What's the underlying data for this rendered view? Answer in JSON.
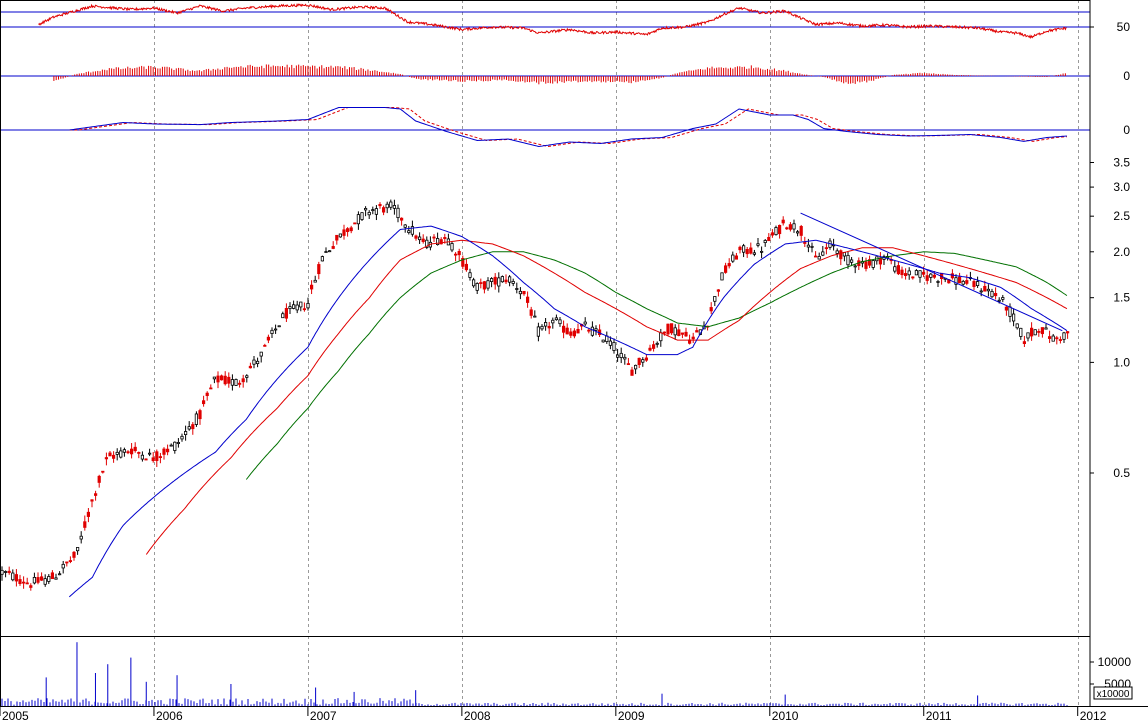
{
  "colors": {
    "up": "#000000",
    "down": "#e00000",
    "ma_short": "#0000cc",
    "ma_mid": "#e00000",
    "ma_long": "#007000",
    "reference_line": "#0000cc",
    "grid": "#9a9a9a",
    "volume": "#0000cc"
  },
  "chart_data": [
    {
      "id": "price",
      "type": "candlestick",
      "scale": "log",
      "ylim": [
        0.18,
        3.6
      ],
      "yticks": [
        "3.5",
        "3.0",
        "2.5",
        "2.0",
        "1.5",
        "1.0",
        "0.5"
      ],
      "ytick_values": [
        3.5,
        3.0,
        2.5,
        2.0,
        1.5,
        1.0,
        0.5
      ],
      "x_range": [
        2005.0,
        2011.95
      ],
      "x_tick_labels": [
        "2005",
        "2006",
        "2007",
        "2008",
        "2009",
        "2010",
        "2011",
        "2012"
      ],
      "x_tick_values": [
        2005,
        2006,
        2007,
        2008,
        2009,
        2010,
        2011,
        2012
      ],
      "close_anchors": [
        [
          2005.0,
          0.27
        ],
        [
          2005.2,
          0.25
        ],
        [
          2005.35,
          0.26
        ],
        [
          2005.5,
          0.3
        ],
        [
          2005.6,
          0.42
        ],
        [
          2005.7,
          0.55
        ],
        [
          2005.85,
          0.58
        ],
        [
          2006.0,
          0.55
        ],
        [
          2006.15,
          0.6
        ],
        [
          2006.3,
          0.72
        ],
        [
          2006.4,
          0.9
        ],
        [
          2006.55,
          0.88
        ],
        [
          2006.7,
          1.05
        ],
        [
          2006.85,
          1.35
        ],
        [
          2007.0,
          1.45
        ],
        [
          2007.1,
          1.95
        ],
        [
          2007.25,
          2.3
        ],
        [
          2007.4,
          2.6
        ],
        [
          2007.55,
          2.65
        ],
        [
          2007.65,
          2.35
        ],
        [
          2007.75,
          2.1
        ],
        [
          2007.9,
          2.2
        ],
        [
          2008.0,
          1.9
        ],
        [
          2008.1,
          1.6
        ],
        [
          2008.3,
          1.7
        ],
        [
          2008.4,
          1.55
        ],
        [
          2008.5,
          1.2
        ],
        [
          2008.6,
          1.3
        ],
        [
          2008.7,
          1.2
        ],
        [
          2008.8,
          1.25
        ],
        [
          2008.95,
          1.15
        ],
        [
          2009.1,
          0.95
        ],
        [
          2009.2,
          1.05
        ],
        [
          2009.35,
          1.25
        ],
        [
          2009.5,
          1.15
        ],
        [
          2009.6,
          1.3
        ],
        [
          2009.7,
          1.75
        ],
        [
          2009.8,
          2.0
        ],
        [
          2009.95,
          2.05
        ],
        [
          2010.1,
          2.4
        ],
        [
          2010.2,
          2.3
        ],
        [
          2010.3,
          1.9
        ],
        [
          2010.4,
          2.1
        ],
        [
          2010.5,
          1.9
        ],
        [
          2010.65,
          1.85
        ],
        [
          2010.75,
          1.95
        ],
        [
          2010.85,
          1.75
        ],
        [
          2011.0,
          1.72
        ],
        [
          2011.15,
          1.7
        ],
        [
          2011.3,
          1.65
        ],
        [
          2011.45,
          1.55
        ],
        [
          2011.55,
          1.4
        ],
        [
          2011.65,
          1.15
        ],
        [
          2011.75,
          1.25
        ],
        [
          2011.85,
          1.15
        ],
        [
          2011.93,
          1.2
        ]
      ],
      "ma_short_anchors": [
        [
          2005.45,
          0.23
        ],
        [
          2005.6,
          0.26
        ],
        [
          2005.8,
          0.36
        ],
        [
          2006.0,
          0.43
        ],
        [
          2006.2,
          0.5
        ],
        [
          2006.4,
          0.57
        ],
        [
          2006.6,
          0.7
        ],
        [
          2006.8,
          0.9
        ],
        [
          2007.0,
          1.1
        ],
        [
          2007.2,
          1.5
        ],
        [
          2007.4,
          1.9
        ],
        [
          2007.6,
          2.3
        ],
        [
          2007.8,
          2.35
        ],
        [
          2008.0,
          2.2
        ],
        [
          2008.2,
          1.95
        ],
        [
          2008.4,
          1.65
        ],
        [
          2008.6,
          1.4
        ],
        [
          2008.8,
          1.25
        ],
        [
          2009.0,
          1.15
        ],
        [
          2009.2,
          1.05
        ],
        [
          2009.4,
          1.05
        ],
        [
          2009.5,
          1.1
        ],
        [
          2009.7,
          1.5
        ],
        [
          2009.9,
          1.85
        ],
        [
          2010.1,
          2.1
        ],
        [
          2010.3,
          2.15
        ],
        [
          2010.5,
          2.05
        ],
        [
          2010.7,
          1.95
        ],
        [
          2010.9,
          1.85
        ],
        [
          2011.1,
          1.75
        ],
        [
          2011.3,
          1.7
        ],
        [
          2011.5,
          1.6
        ],
        [
          2011.7,
          1.4
        ],
        [
          2011.93,
          1.22
        ]
      ],
      "ma_mid_anchors": [
        [
          2005.95,
          0.3
        ],
        [
          2006.2,
          0.4
        ],
        [
          2006.5,
          0.55
        ],
        [
          2006.8,
          0.75
        ],
        [
          2007.0,
          0.92
        ],
        [
          2007.2,
          1.2
        ],
        [
          2007.4,
          1.5
        ],
        [
          2007.6,
          1.9
        ],
        [
          2007.8,
          2.1
        ],
        [
          2008.0,
          2.15
        ],
        [
          2008.2,
          2.1
        ],
        [
          2008.4,
          1.95
        ],
        [
          2008.6,
          1.75
        ],
        [
          2008.8,
          1.55
        ],
        [
          2009.0,
          1.4
        ],
        [
          2009.2,
          1.25
        ],
        [
          2009.4,
          1.15
        ],
        [
          2009.6,
          1.15
        ],
        [
          2009.8,
          1.3
        ],
        [
          2010.0,
          1.55
        ],
        [
          2010.2,
          1.8
        ],
        [
          2010.4,
          1.95
        ],
        [
          2010.6,
          2.05
        ],
        [
          2010.8,
          2.05
        ],
        [
          2011.0,
          1.95
        ],
        [
          2011.2,
          1.85
        ],
        [
          2011.4,
          1.75
        ],
        [
          2011.6,
          1.65
        ],
        [
          2011.8,
          1.5
        ],
        [
          2011.93,
          1.4
        ]
      ],
      "ma_long_anchors": [
        [
          2006.6,
          0.48
        ],
        [
          2006.8,
          0.6
        ],
        [
          2007.0,
          0.75
        ],
        [
          2007.2,
          0.95
        ],
        [
          2007.4,
          1.2
        ],
        [
          2007.6,
          1.5
        ],
        [
          2007.8,
          1.75
        ],
        [
          2008.0,
          1.9
        ],
        [
          2008.2,
          2.0
        ],
        [
          2008.4,
          2.0
        ],
        [
          2008.6,
          1.9
        ],
        [
          2008.8,
          1.75
        ],
        [
          2009.0,
          1.55
        ],
        [
          2009.2,
          1.4
        ],
        [
          2009.4,
          1.28
        ],
        [
          2009.6,
          1.25
        ],
        [
          2009.8,
          1.32
        ],
        [
          2010.0,
          1.45
        ],
        [
          2010.2,
          1.6
        ],
        [
          2010.4,
          1.75
        ],
        [
          2010.6,
          1.88
        ],
        [
          2010.8,
          1.95
        ],
        [
          2011.0,
          2.0
        ],
        [
          2011.2,
          1.98
        ],
        [
          2011.4,
          1.9
        ],
        [
          2011.6,
          1.82
        ],
        [
          2011.8,
          1.65
        ],
        [
          2011.93,
          1.52
        ]
      ],
      "trendline": [
        [
          2010.2,
          2.55
        ],
        [
          2011.9,
          1.22
        ]
      ]
    },
    {
      "id": "indicator_1",
      "type": "line",
      "ylim": [
        0,
        100
      ],
      "yticks": [
        "50"
      ],
      "ytick_values": [
        50
      ],
      "reference_lines": [
        80,
        50
      ],
      "anchors": [
        [
          2005.25,
          55
        ],
        [
          2005.35,
          70
        ],
        [
          2005.6,
          92
        ],
        [
          2005.85,
          85
        ],
        [
          2006.0,
          88
        ],
        [
          2006.15,
          78
        ],
        [
          2006.3,
          92
        ],
        [
          2006.45,
          82
        ],
        [
          2006.6,
          88
        ],
        [
          2006.8,
          92
        ],
        [
          2007.0,
          94
        ],
        [
          2007.15,
          85
        ],
        [
          2007.35,
          90
        ],
        [
          2007.5,
          88
        ],
        [
          2007.65,
          60
        ],
        [
          2007.8,
          55
        ],
        [
          2008.0,
          45
        ],
        [
          2008.2,
          50
        ],
        [
          2008.4,
          48
        ],
        [
          2008.5,
          38
        ],
        [
          2008.7,
          45
        ],
        [
          2008.85,
          38
        ],
        [
          2009.0,
          40
        ],
        [
          2009.2,
          35
        ],
        [
          2009.3,
          48
        ],
        [
          2009.45,
          50
        ],
        [
          2009.6,
          60
        ],
        [
          2009.7,
          75
        ],
        [
          2009.8,
          88
        ],
        [
          2009.95,
          78
        ],
        [
          2010.1,
          82
        ],
        [
          2010.2,
          68
        ],
        [
          2010.3,
          55
        ],
        [
          2010.45,
          58
        ],
        [
          2010.6,
          52
        ],
        [
          2010.75,
          54
        ],
        [
          2010.9,
          50
        ],
        [
          2011.05,
          52
        ],
        [
          2011.2,
          50
        ],
        [
          2011.35,
          48
        ],
        [
          2011.5,
          40
        ],
        [
          2011.6,
          38
        ],
        [
          2011.7,
          30
        ],
        [
          2011.8,
          42
        ],
        [
          2011.93,
          48
        ]
      ]
    },
    {
      "id": "histogram",
      "type": "bar",
      "ylim": [
        -1,
        1
      ],
      "yticks": [
        "0"
      ],
      "ytick_values": [
        0
      ],
      "anchors": [
        [
          2005.35,
          -0.25
        ],
        [
          2005.5,
          0.1
        ],
        [
          2005.7,
          0.35
        ],
        [
          2006.0,
          0.45
        ],
        [
          2006.3,
          0.25
        ],
        [
          2006.5,
          0.45
        ],
        [
          2006.8,
          0.5
        ],
        [
          2007.2,
          0.45
        ],
        [
          2007.4,
          0.3
        ],
        [
          2007.6,
          0.1
        ],
        [
          2007.7,
          -0.15
        ],
        [
          2008.0,
          -0.25
        ],
        [
          2008.3,
          -0.2
        ],
        [
          2008.5,
          -0.35
        ],
        [
          2008.8,
          -0.25
        ],
        [
          2009.1,
          -0.3
        ],
        [
          2009.3,
          -0.1
        ],
        [
          2009.4,
          0.15
        ],
        [
          2009.6,
          0.4
        ],
        [
          2009.9,
          0.45
        ],
        [
          2010.1,
          0.25
        ],
        [
          2010.25,
          0.05
        ],
        [
          2010.35,
          -0.05
        ],
        [
          2010.5,
          -0.4
        ],
        [
          2010.65,
          -0.25
        ],
        [
          2010.8,
          0.05
        ],
        [
          2011.0,
          0.15
        ],
        [
          2011.2,
          0.05
        ],
        [
          2011.5,
          0.0
        ],
        [
          2011.8,
          -0.05
        ],
        [
          2011.93,
          0.15
        ]
      ]
    },
    {
      "id": "macd",
      "type": "line",
      "ylim": [
        -1,
        1
      ],
      "yticks": [
        "0"
      ],
      "ytick_values": [
        0
      ],
      "series_anchors": [
        [
          2005.45,
          0.0
        ],
        [
          2005.8,
          0.25
        ],
        [
          2006.0,
          0.2
        ],
        [
          2006.3,
          0.18
        ],
        [
          2006.5,
          0.25
        ],
        [
          2006.8,
          0.3
        ],
        [
          2007.0,
          0.35
        ],
        [
          2007.2,
          0.75
        ],
        [
          2007.5,
          0.75
        ],
        [
          2007.6,
          0.7
        ],
        [
          2007.7,
          0.3
        ],
        [
          2007.9,
          -0.05
        ],
        [
          2008.1,
          -0.35
        ],
        [
          2008.3,
          -0.3
        ],
        [
          2008.5,
          -0.55
        ],
        [
          2008.7,
          -0.4
        ],
        [
          2008.9,
          -0.45
        ],
        [
          2009.1,
          -0.3
        ],
        [
          2009.3,
          -0.25
        ],
        [
          2009.5,
          0.05
        ],
        [
          2009.65,
          0.2
        ],
        [
          2009.8,
          0.7
        ],
        [
          2010.0,
          0.5
        ],
        [
          2010.15,
          0.5
        ],
        [
          2010.25,
          0.35
        ],
        [
          2010.35,
          0.05
        ],
        [
          2010.5,
          -0.05
        ],
        [
          2010.7,
          -0.15
        ],
        [
          2010.9,
          -0.2
        ],
        [
          2011.1,
          -0.18
        ],
        [
          2011.3,
          -0.15
        ],
        [
          2011.5,
          -0.25
        ],
        [
          2011.65,
          -0.38
        ],
        [
          2011.8,
          -0.25
        ],
        [
          2011.93,
          -0.2
        ]
      ],
      "signal_lag": 0.06
    },
    {
      "id": "volume",
      "type": "bar",
      "ylim": [
        0,
        15000
      ],
      "yticks": [
        "10000",
        "5000"
      ],
      "ytick_values": [
        10000,
        5000
      ],
      "unit_label": "x10000",
      "spikes": [
        [
          2005.5,
          14500
        ],
        [
          2005.3,
          6500
        ],
        [
          2005.62,
          7500
        ],
        [
          2005.7,
          9500
        ],
        [
          2005.85,
          11000
        ],
        [
          2005.95,
          5500
        ],
        [
          2006.15,
          7000
        ],
        [
          2006.5,
          5000
        ],
        [
          2007.05,
          4200
        ],
        [
          2007.3,
          3200
        ],
        [
          2007.7,
          3600
        ],
        [
          2009.3,
          2800
        ],
        [
          2010.1,
          2600
        ],
        [
          2011.35,
          2400
        ]
      ]
    }
  ]
}
